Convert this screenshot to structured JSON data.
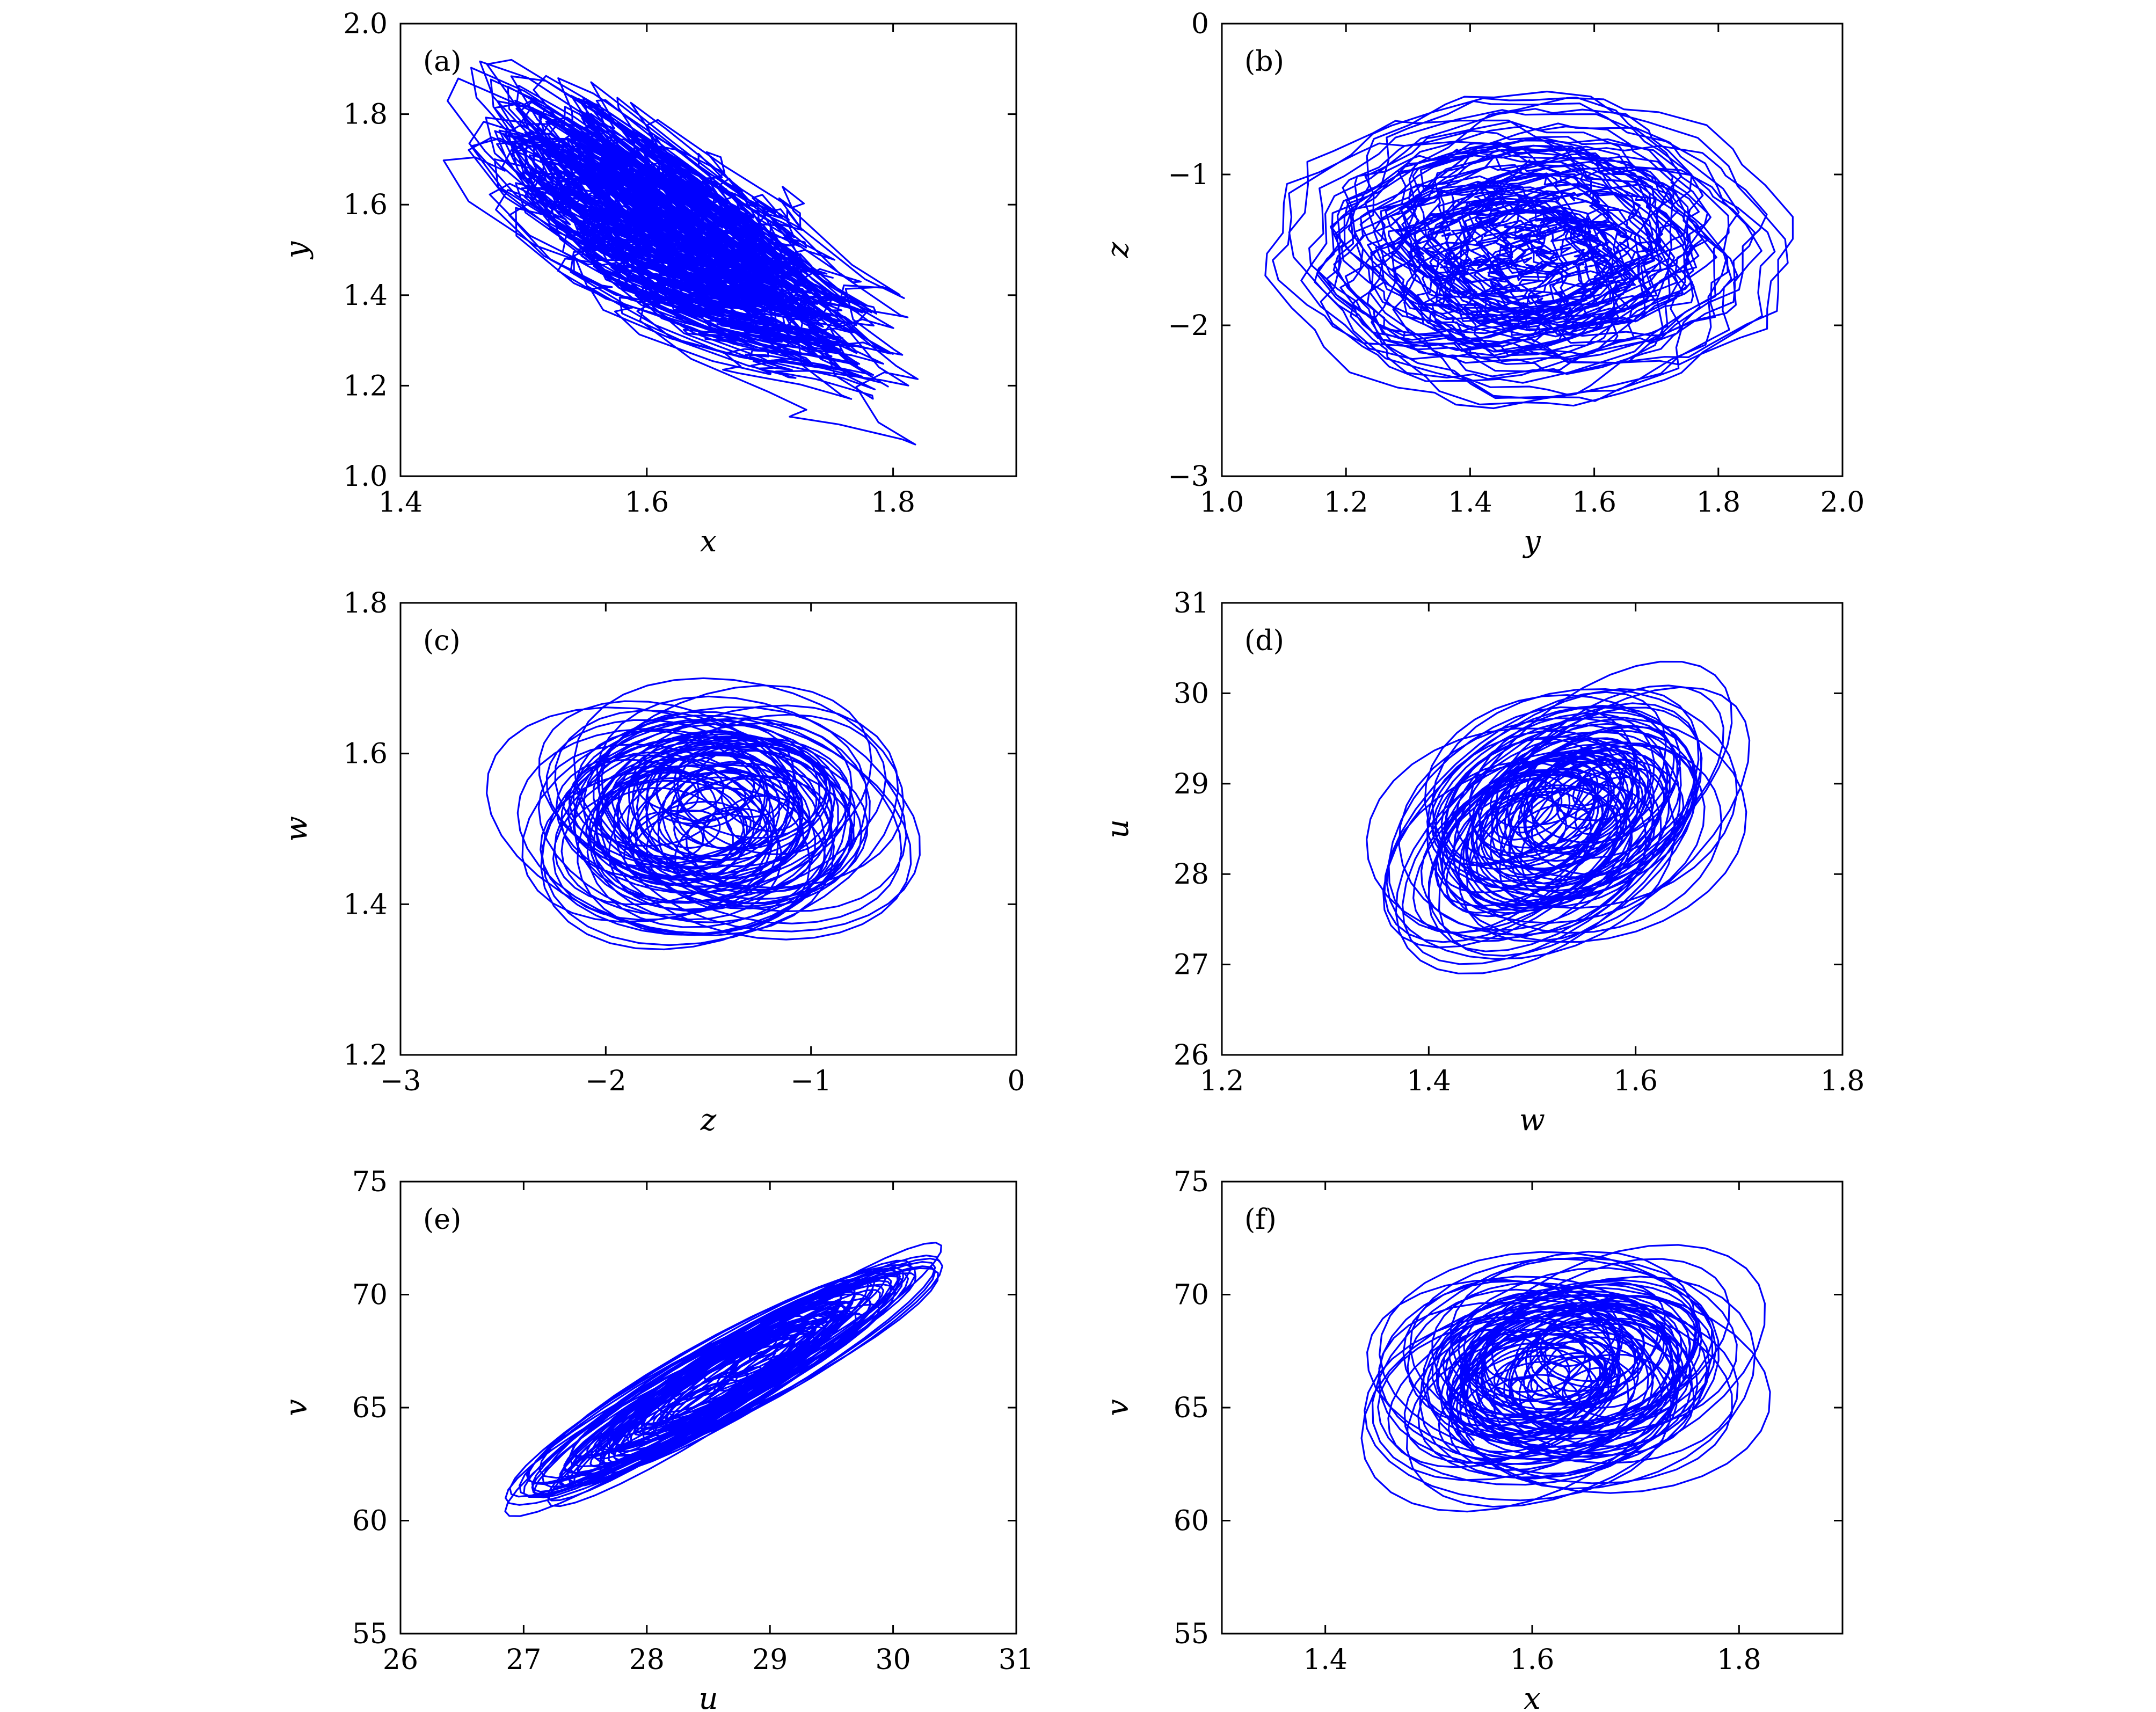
{
  "figure": {
    "stroke_color": "#0000ff",
    "axis_color": "#000000",
    "background": "#ffffff"
  },
  "chart_data": [
    {
      "id": "a",
      "panel_label": "(a)",
      "type": "line",
      "xlabel": "x",
      "ylabel": "y",
      "xlim": [
        1.4,
        1.9
      ],
      "ylim": [
        1.0,
        2.0
      ],
      "xticks": [
        1.4,
        1.6,
        1.8
      ],
      "xtick_labels": [
        "1.4",
        "1.6",
        "1.8"
      ],
      "yticks": [
        1.0,
        1.2,
        1.4,
        1.6,
        1.8,
        2.0
      ],
      "ytick_labels": [
        "1.0",
        "1.2",
        "1.4",
        "1.6",
        "1.8",
        "2.0"
      ],
      "grid": false,
      "legend": "none",
      "series": [
        {
          "kind": "attractor",
          "seed": 11,
          "points": 2600,
          "x": {
            "center": 1.595,
            "amp": 0.12,
            "freq": 1.0,
            "harm": 0.22,
            "hfreq": 7.0,
            "min": 1.435,
            "max": 1.82
          },
          "y": {
            "center": 1.52,
            "amp": 0.22,
            "freq": 1.0,
            "harm": 0.12,
            "hfreq": 8.0,
            "min": 1.07,
            "max": 1.92
          },
          "correlation": -0.72
        }
      ]
    },
    {
      "id": "b",
      "panel_label": "(b)",
      "type": "line",
      "xlabel": "y",
      "ylabel": "z",
      "xlim": [
        1.0,
        2.0
      ],
      "ylim": [
        -3,
        0
      ],
      "xticks": [
        1.0,
        1.2,
        1.4,
        1.6,
        1.8,
        2.0
      ],
      "xtick_labels": [
        "1.0",
        "1.2",
        "1.4",
        "1.6",
        "1.8",
        "2.0"
      ],
      "yticks": [
        -3,
        -2,
        -1,
        0
      ],
      "ytick_labels": [
        "−3",
        "−2",
        "−1",
        "0"
      ],
      "grid": false,
      "legend": "none",
      "series": [
        {
          "kind": "attractor",
          "seed": 23,
          "points": 2600,
          "x": {
            "center": 1.49,
            "amp": 0.36,
            "freq": 1.0,
            "harm": 0.05,
            "hfreq": 9.0,
            "min": 1.07,
            "max": 1.92
          },
          "y": {
            "center": -1.5,
            "amp": 0.95,
            "freq": 1.0,
            "harm": 0.03,
            "hfreq": 11.0,
            "min": -2.55,
            "max": -0.45
          },
          "correlation": 0.0
        }
      ]
    },
    {
      "id": "c",
      "panel_label": "(c)",
      "type": "line",
      "xlabel": "z",
      "ylabel": "w",
      "xlim": [
        -3,
        0
      ],
      "ylim": [
        1.2,
        1.8
      ],
      "xticks": [
        -3,
        -2,
        -1,
        0
      ],
      "xtick_labels": [
        "−3",
        "−2",
        "−1",
        "0"
      ],
      "yticks": [
        1.2,
        1.4,
        1.6,
        1.8
      ],
      "ytick_labels": [
        "1.2",
        "1.4",
        "1.6",
        "1.8"
      ],
      "grid": false,
      "legend": "none",
      "series": [
        {
          "kind": "attractor",
          "seed": 37,
          "points": 2600,
          "x": {
            "center": -1.53,
            "amp": 1.0,
            "freq": 1.0,
            "harm": 0.0,
            "hfreq": 0.0,
            "min": -2.58,
            "max": -0.47
          },
          "y": {
            "center": 1.52,
            "amp": 0.17,
            "freq": 1.0,
            "harm": 0.0,
            "hfreq": 0.0,
            "min": 1.34,
            "max": 1.7
          },
          "correlation": 0.0
        }
      ]
    },
    {
      "id": "d",
      "panel_label": "(d)",
      "type": "line",
      "xlabel": "w",
      "ylabel": "u",
      "xlim": [
        1.2,
        1.8
      ],
      "ylim": [
        26,
        31
      ],
      "xticks": [
        1.2,
        1.4,
        1.6,
        1.8
      ],
      "xtick_labels": [
        "1.2",
        "1.4",
        "1.6",
        "1.8"
      ],
      "yticks": [
        26,
        27,
        28,
        29,
        30,
        31
      ],
      "ytick_labels": [
        "26",
        "27",
        "28",
        "29",
        "30",
        "31"
      ],
      "grid": false,
      "legend": "none",
      "series": [
        {
          "kind": "attractor",
          "seed": 53,
          "points": 2600,
          "x": {
            "center": 1.52,
            "amp": 0.17,
            "freq": 1.0,
            "harm": 0.0,
            "hfreq": 0.0,
            "min": 1.34,
            "max": 1.71
          },
          "y": {
            "center": 28.6,
            "amp": 1.6,
            "freq": 1.0,
            "harm": 0.0,
            "hfreq": 0.0,
            "min": 26.9,
            "max": 30.35
          },
          "correlation": 0.35
        }
      ]
    },
    {
      "id": "e",
      "panel_label": "(e)",
      "type": "line",
      "xlabel": "u",
      "ylabel": "v",
      "xlim": [
        26,
        31
      ],
      "ylim": [
        55,
        75
      ],
      "xticks": [
        26,
        27,
        28,
        29,
        30,
        31
      ],
      "xtick_labels": [
        "26",
        "27",
        "28",
        "29",
        "30",
        "31"
      ],
      "yticks": [
        55,
        60,
        65,
        70,
        75
      ],
      "ytick_labels": [
        "55",
        "60",
        "65",
        "70",
        "75"
      ],
      "grid": false,
      "legend": "none",
      "series": [
        {
          "kind": "attractor",
          "seed": 71,
          "points": 2600,
          "x": {
            "center": 28.6,
            "amp": 1.6,
            "freq": 1.0,
            "harm": 0.0,
            "hfreq": 0.0,
            "min": 26.85,
            "max": 30.4
          },
          "y": {
            "center": 66.2,
            "amp": 5.6,
            "freq": 1.0,
            "harm": 0.0,
            "hfreq": 0.0,
            "min": 60.2,
            "max": 72.3
          },
          "correlation": 0.93
        }
      ]
    },
    {
      "id": "f",
      "panel_label": "(f)",
      "type": "line",
      "xlabel": "x",
      "ylabel": "v",
      "xlim": [
        1.3,
        1.9
      ],
      "ylim": [
        55,
        75
      ],
      "xticks": [
        1.4,
        1.6,
        1.8
      ],
      "xtick_labels": [
        "1.4",
        "1.6",
        "1.8"
      ],
      "yticks": [
        55,
        60,
        65,
        70,
        75
      ],
      "ytick_labels": [
        "55",
        "60",
        "65",
        "70",
        "75"
      ],
      "grid": false,
      "legend": "none",
      "series": [
        {
          "kind": "attractor",
          "seed": 89,
          "points": 2600,
          "x": {
            "center": 1.625,
            "amp": 0.19,
            "freq": 1.0,
            "harm": 0.0,
            "hfreq": 0.0,
            "min": 1.435,
            "max": 1.83
          },
          "y": {
            "center": 66.1,
            "amp": 5.8,
            "freq": 1.0,
            "harm": 0.0,
            "hfreq": 0.0,
            "min": 60.4,
            "max": 72.2
          },
          "correlation": 0.15
        }
      ]
    }
  ]
}
